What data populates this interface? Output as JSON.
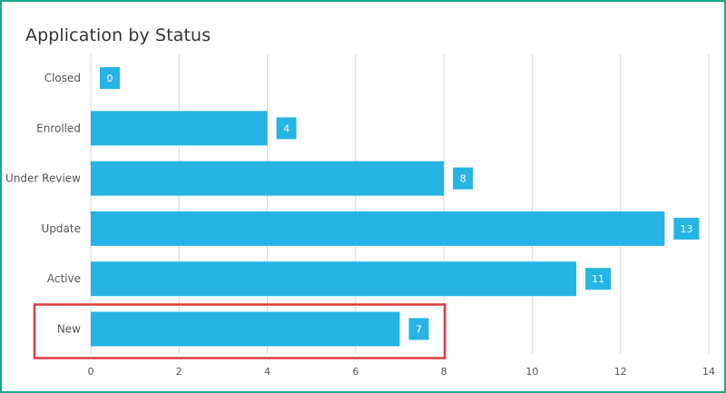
{
  "chart_data": {
    "type": "bar",
    "orientation": "horizontal",
    "title": "Application by Status",
    "categories": [
      "Closed",
      "Enrolled",
      "Under Review",
      "Update",
      "Active",
      "New"
    ],
    "values": [
      0,
      4,
      8,
      13,
      11,
      7
    ],
    "xlim": [
      0,
      14
    ],
    "x_ticks": [
      0,
      2,
      4,
      6,
      8,
      10,
      12,
      14
    ],
    "grid": true,
    "highlighted_category": "New",
    "colors": {
      "bar": "#25b4e4",
      "highlight_box": "#e0393e",
      "grid": "#d9d9d9",
      "frame": "#1aa88a"
    }
  }
}
